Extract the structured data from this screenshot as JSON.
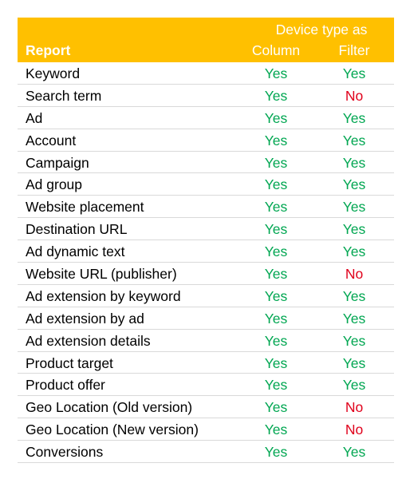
{
  "header": {
    "group_title": "Device type as",
    "col_report": "Report",
    "col_column": "Column",
    "col_filter": "Filter"
  },
  "colors": {
    "header_bg": "#ffc000",
    "yes": "#00a651",
    "no": "#e0001b"
  },
  "rows": [
    {
      "report": "Keyword",
      "column": "Yes",
      "filter": "Yes"
    },
    {
      "report": "Search term",
      "column": "Yes",
      "filter": "No"
    },
    {
      "report": "Ad",
      "column": "Yes",
      "filter": "Yes"
    },
    {
      "report": "Account",
      "column": "Yes",
      "filter": "Yes"
    },
    {
      "report": "Campaign",
      "column": "Yes",
      "filter": "Yes"
    },
    {
      "report": "Ad group",
      "column": "Yes",
      "filter": "Yes"
    },
    {
      "report": "Website placement",
      "column": "Yes",
      "filter": "Yes"
    },
    {
      "report": "Destination URL",
      "column": "Yes",
      "filter": "Yes"
    },
    {
      "report": "Ad dynamic text",
      "column": "Yes",
      "filter": "Yes"
    },
    {
      "report": "Website URL (publisher)",
      "column": "Yes",
      "filter": "No"
    },
    {
      "report": "Ad extension by keyword",
      "column": "Yes",
      "filter": "Yes"
    },
    {
      "report": "Ad extension by ad",
      "column": "Yes",
      "filter": "Yes"
    },
    {
      "report": "Ad extension details",
      "column": "Yes",
      "filter": "Yes"
    },
    {
      "report": "Product target",
      "column": "Yes",
      "filter": "Yes"
    },
    {
      "report": "Product offer",
      "column": "Yes",
      "filter": "Yes"
    },
    {
      "report": "Geo Location (Old version)",
      "column": "Yes",
      "filter": "No"
    },
    {
      "report": "Geo Location (New version)",
      "column": "Yes",
      "filter": "No"
    },
    {
      "report": "Conversions",
      "column": "Yes",
      "filter": "Yes"
    }
  ]
}
